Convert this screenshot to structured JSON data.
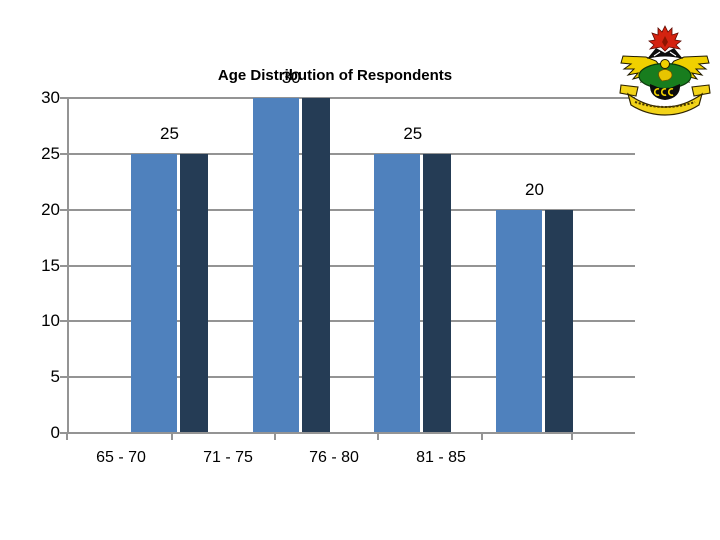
{
  "slide": {
    "background": "#ffffff"
  },
  "logo": {
    "name": "KNUST university crest"
  },
  "chart_data": {
    "type": "bar",
    "title": "Age Distribution of Respondents",
    "categories": [
      "65 - 70",
      "71 - 75",
      "76 - 80",
      "81 - 85"
    ],
    "values": [
      25,
      30,
      25,
      20
    ],
    "data_labels": [
      "25",
      "30",
      "25",
      "20"
    ],
    "xlabel": "",
    "ylabel": "",
    "ylim": [
      0,
      30
    ],
    "yticks": [
      0,
      5,
      10,
      15,
      20,
      25,
      30
    ],
    "grid": "horizontal",
    "legend": "none",
    "style": {
      "bar_front_color": "#4f81bd",
      "bar_side_color": "#253c55",
      "gridline_color": "#949494",
      "label_color": "#000000",
      "background": "#ffffff",
      "bar_effect": "each bar drawn as light front face plus dark side face of equal height"
    }
  }
}
